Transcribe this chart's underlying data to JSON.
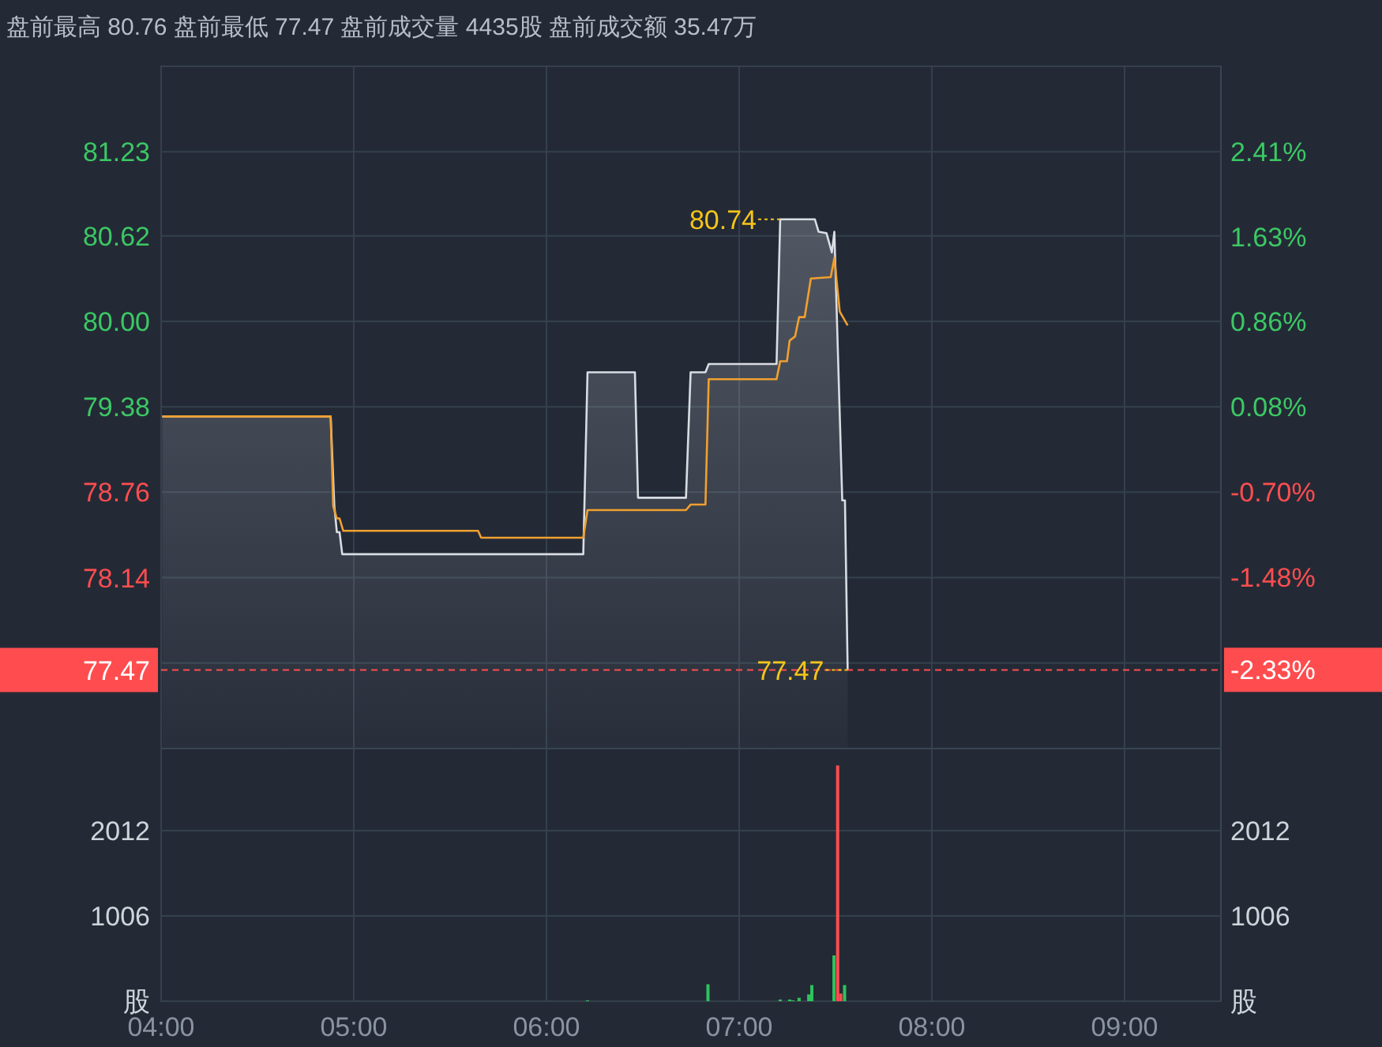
{
  "chart_data": [
    {
      "type": "area",
      "title": "盘前最高 80.76 盘前最低 77.47 盘前成交量 4435股 盘前成交额 35.47万",
      "series": [
        {
          "type": "area",
          "color": "#d9dde3",
          "x": [
            4.006,
            4.88,
            4.899,
            4.912,
            4.926,
            4.94,
            6.191,
            6.213,
            6.459,
            6.475,
            6.724,
            6.748,
            6.825,
            6.842,
            7.194,
            7.213,
            7.393,
            7.412,
            7.453,
            7.481,
            7.494,
            7.535,
            7.549,
            7.563
          ],
          "values": [
            79.31,
            79.31,
            78.66,
            78.47,
            78.47,
            78.31,
            78.31,
            79.63,
            79.63,
            78.72,
            78.72,
            79.63,
            79.63,
            79.69,
            79.69,
            80.74,
            80.74,
            80.65,
            80.64,
            80.5,
            80.65,
            78.7,
            78.7,
            77.47
          ]
        },
        {
          "type": "line",
          "color": "#f0a030",
          "x": [
            4.006,
            4.88,
            4.893,
            4.912,
            4.926,
            4.945,
            5.645,
            5.661,
            6.191,
            6.213,
            6.724,
            6.748,
            6.825,
            6.842,
            7.194,
            7.213,
            7.248,
            7.262,
            7.29,
            7.311,
            7.34,
            7.372,
            7.475,
            7.494,
            7.522,
            7.563
          ],
          "values": [
            79.31,
            79.31,
            78.66,
            78.57,
            78.57,
            78.48,
            78.48,
            78.43,
            78.43,
            78.63,
            78.63,
            78.67,
            78.67,
            79.58,
            79.58,
            79.71,
            79.71,
            79.86,
            79.89,
            80.03,
            80.03,
            80.31,
            80.32,
            80.46,
            80.07,
            79.97
          ]
        }
      ],
      "xlim": [
        4,
        9.5
      ],
      "xticks": [
        {
          "value": 4,
          "label": null
        },
        {
          "value": 5,
          "label": null
        },
        {
          "value": 6,
          "label": null
        },
        {
          "value": 7,
          "label": null
        },
        {
          "value": 8,
          "label": null
        },
        {
          "value": 9,
          "label": null
        }
      ],
      "ylim": [
        76.9,
        81.85
      ],
      "yticks": [
        {
          "value": 81.85,
          "label": null
        },
        81.23,
        80.62,
        {
          "value": 80,
          "label": "80.00"
        },
        79.38,
        78.76,
        78.14,
        {
          "value": 77.52,
          "label": null
        }
      ],
      "y2lim": [
        -3.05,
        3.19
      ],
      "y2ticks": [
        {
          "value": 2.41,
          "label": "2.41%"
        },
        {
          "value": 1.63,
          "label": "1.63%"
        },
        {
          "value": 0.86,
          "label": "0.86%"
        },
        {
          "value": 0.08,
          "label": "0.08%"
        },
        {
          "value": -0.7,
          "label": "-0.70%"
        },
        {
          "value": -1.48,
          "label": "-1.48%"
        },
        {
          "value": -2.33,
          "label": "-2.33%"
        }
      ],
      "tick_labels": "y",
      "grid": true,
      "ref_lines": [
        {
          "axis": "y",
          "value": 77.47,
          "label": "77.47",
          "color": "#ff4d4f",
          "line_style": "dashed"
        }
      ],
      "annotations": [
        {
          "text": "80.74",
          "x": 7.213,
          "y": 80.74
        },
        {
          "text": "77.47",
          "x": 7.563,
          "y": 77.47
        }
      ]
    },
    {
      "type": "bar",
      "series": [
        {
          "x": [
            6.213,
            6.838,
            7.213,
            7.262,
            7.279,
            7.311,
            7.361,
            7.377,
            7.492,
            7.511,
            7.527,
            7.547
          ],
          "values": [
            10,
            200,
            20,
            20,
            10,
            40,
            80,
            190,
            540,
            2780,
            90,
            190
          ],
          "colors": [
            "#2fc25b",
            "#2fc25b",
            "#2fc25b",
            "#2fc25b",
            "#2fc25b",
            "#2fc25b",
            "#2fc25b",
            "#2fc25b",
            "#2fc25b",
            "#ff4d4f",
            "#ff4d4f",
            "#2fc25b"
          ]
        }
      ],
      "xlim": [
        4,
        9.5
      ],
      "xticks": [
        {
          "value": 4,
          "label": "04:00"
        },
        {
          "value": 5,
          "label": "05:00"
        },
        {
          "value": 6,
          "label": "06:00"
        },
        {
          "value": 7,
          "label": "07:00"
        },
        {
          "value": 8,
          "label": "08:00"
        },
        {
          "value": 9,
          "label": "09:00"
        }
      ],
      "ylim": [
        0,
        2980
      ],
      "yticks": [
        {
          "value": 0,
          "label": "股"
        },
        1006,
        2012
      ],
      "y2lim": [
        0,
        2980
      ],
      "y2ticks": [
        {
          "value": 0,
          "label": "股"
        },
        1006,
        2012
      ],
      "grid": true
    }
  ]
}
